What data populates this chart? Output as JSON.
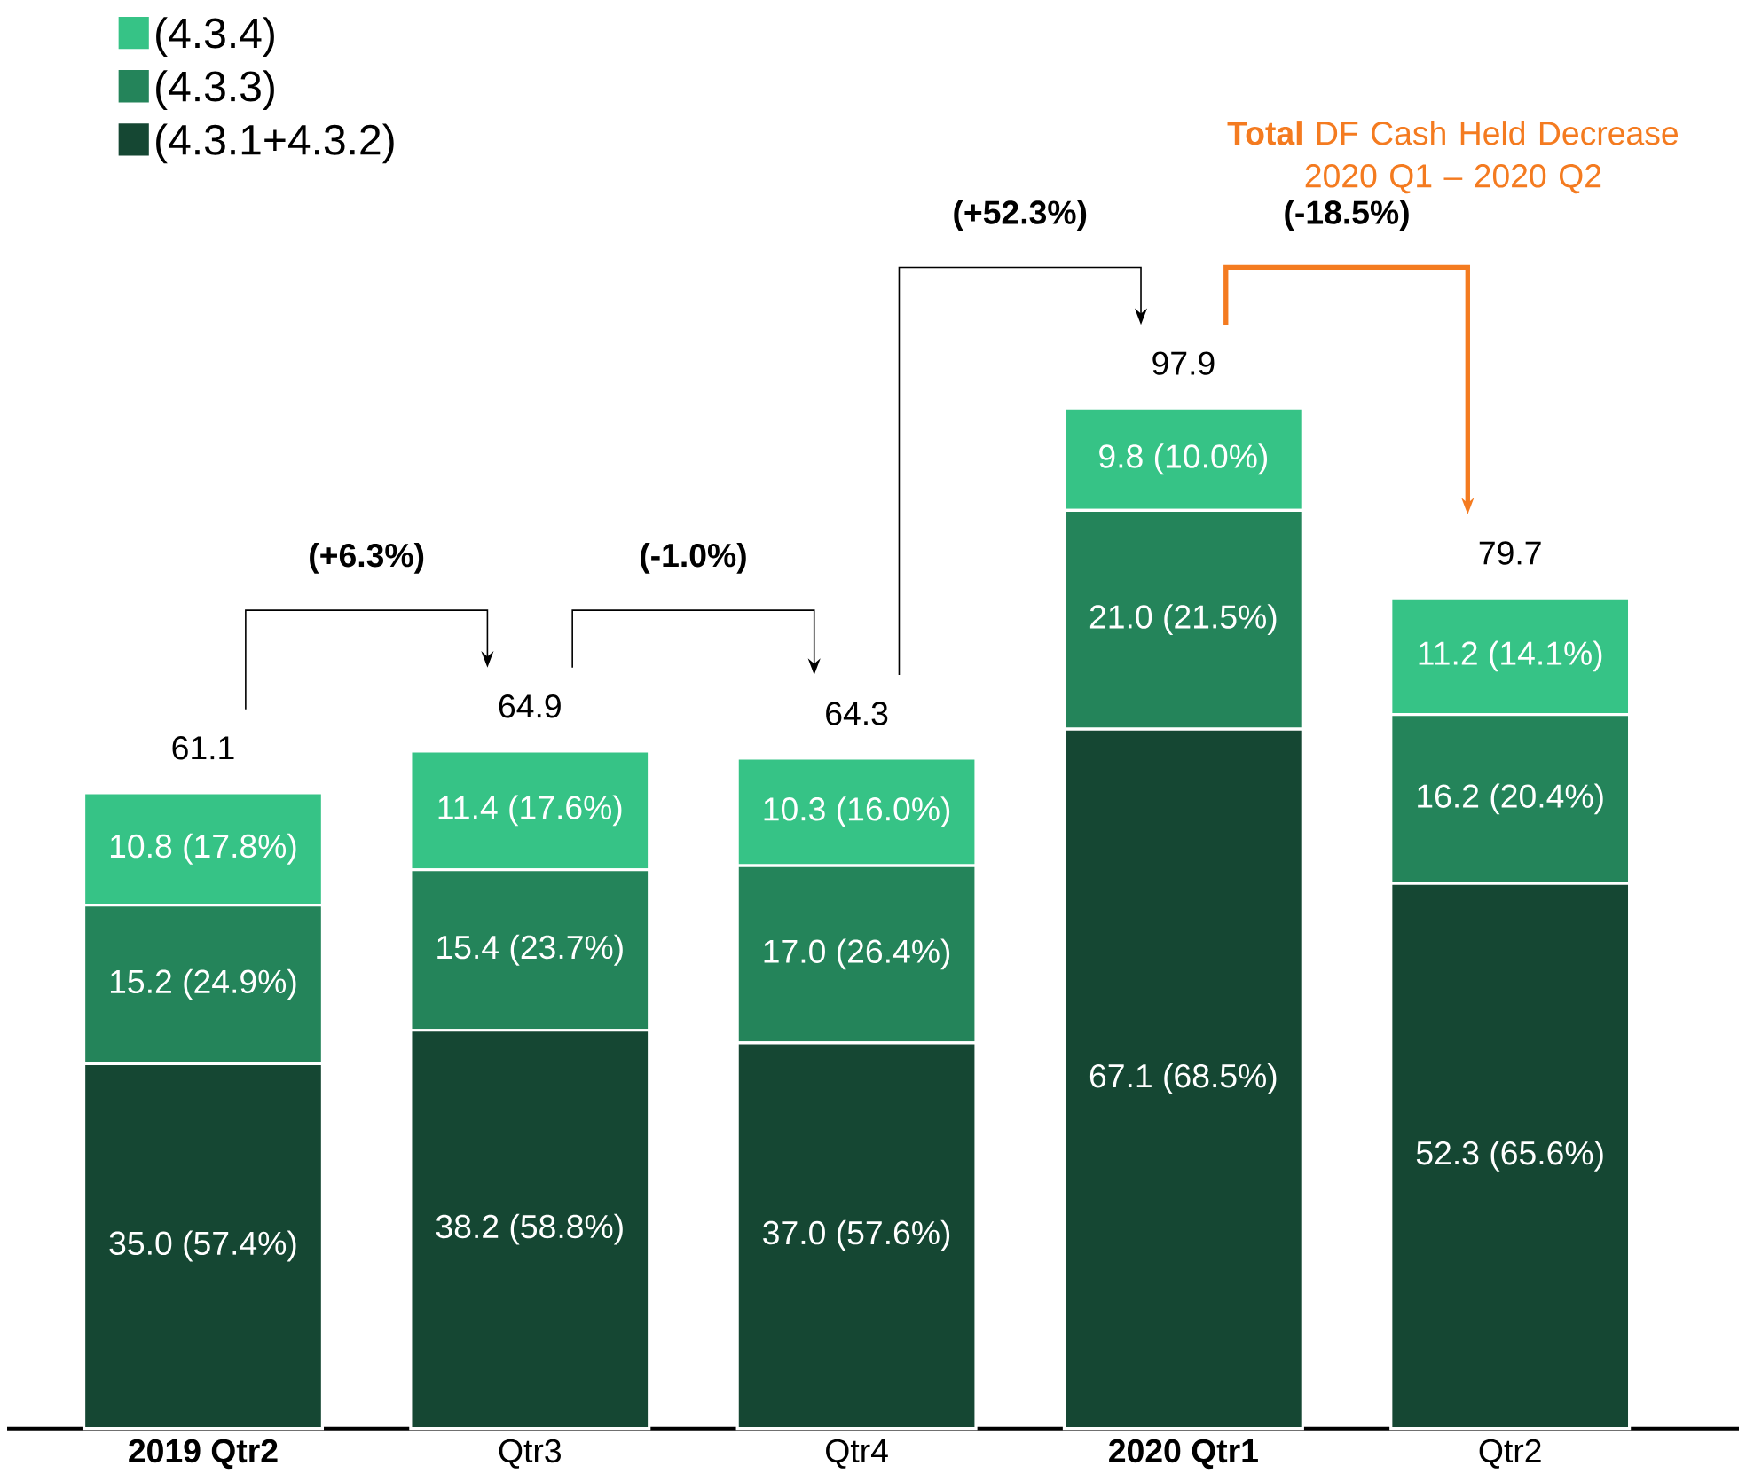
{
  "chart_data": {
    "type": "bar",
    "stacked": true,
    "categories": [
      "**2019 Qtr2**",
      "Qtr3",
      "Qtr4",
      "**2020 Qtr1**",
      "Qtr2"
    ],
    "series": [
      {
        "name": "(4.3.1+4.3.2)",
        "color": "#154733",
        "values": [
          35.0,
          38.2,
          37.0,
          67.1,
          52.3
        ],
        "value_labels": [
          "35.0 (57.4%)",
          "38.2 (58.8%)",
          "37.0 (57.6%)",
          "67.1 (68.5%)",
          "52.3 (65.6%)"
        ]
      },
      {
        "name": "(4.3.3)",
        "color": "#24845A",
        "values": [
          15.2,
          15.4,
          17.0,
          21.0,
          16.2
        ],
        "value_labels": [
          "15.2 (24.9%)",
          "15.4 (23.7%)",
          "17.0 (26.4%)",
          "21.0 (21.5%)",
          "16.2 (20.4%)"
        ]
      },
      {
        "name": "(4.3.4)",
        "color": "#36C386",
        "values": [
          10.8,
          11.4,
          10.3,
          9.8,
          11.2
        ],
        "value_labels": [
          "10.8 (17.8%)",
          "11.4 (17.6%)",
          "10.3 (16.0%)",
          "9.8 (10.0%)",
          "11.2 (14.1%)"
        ]
      }
    ],
    "totals": [
      "61.1",
      "64.9",
      "64.3",
      "97.9",
      "79.7"
    ],
    "annotations": [
      "(+6.3%)",
      "(-1.0%)",
      "(+52.3%)",
      "(-18.5%)",
      "**Total** DF Cash Held Decrease 2020 Q1 – 2020 Q2"
    ],
    "legend": "top left"
  }
}
